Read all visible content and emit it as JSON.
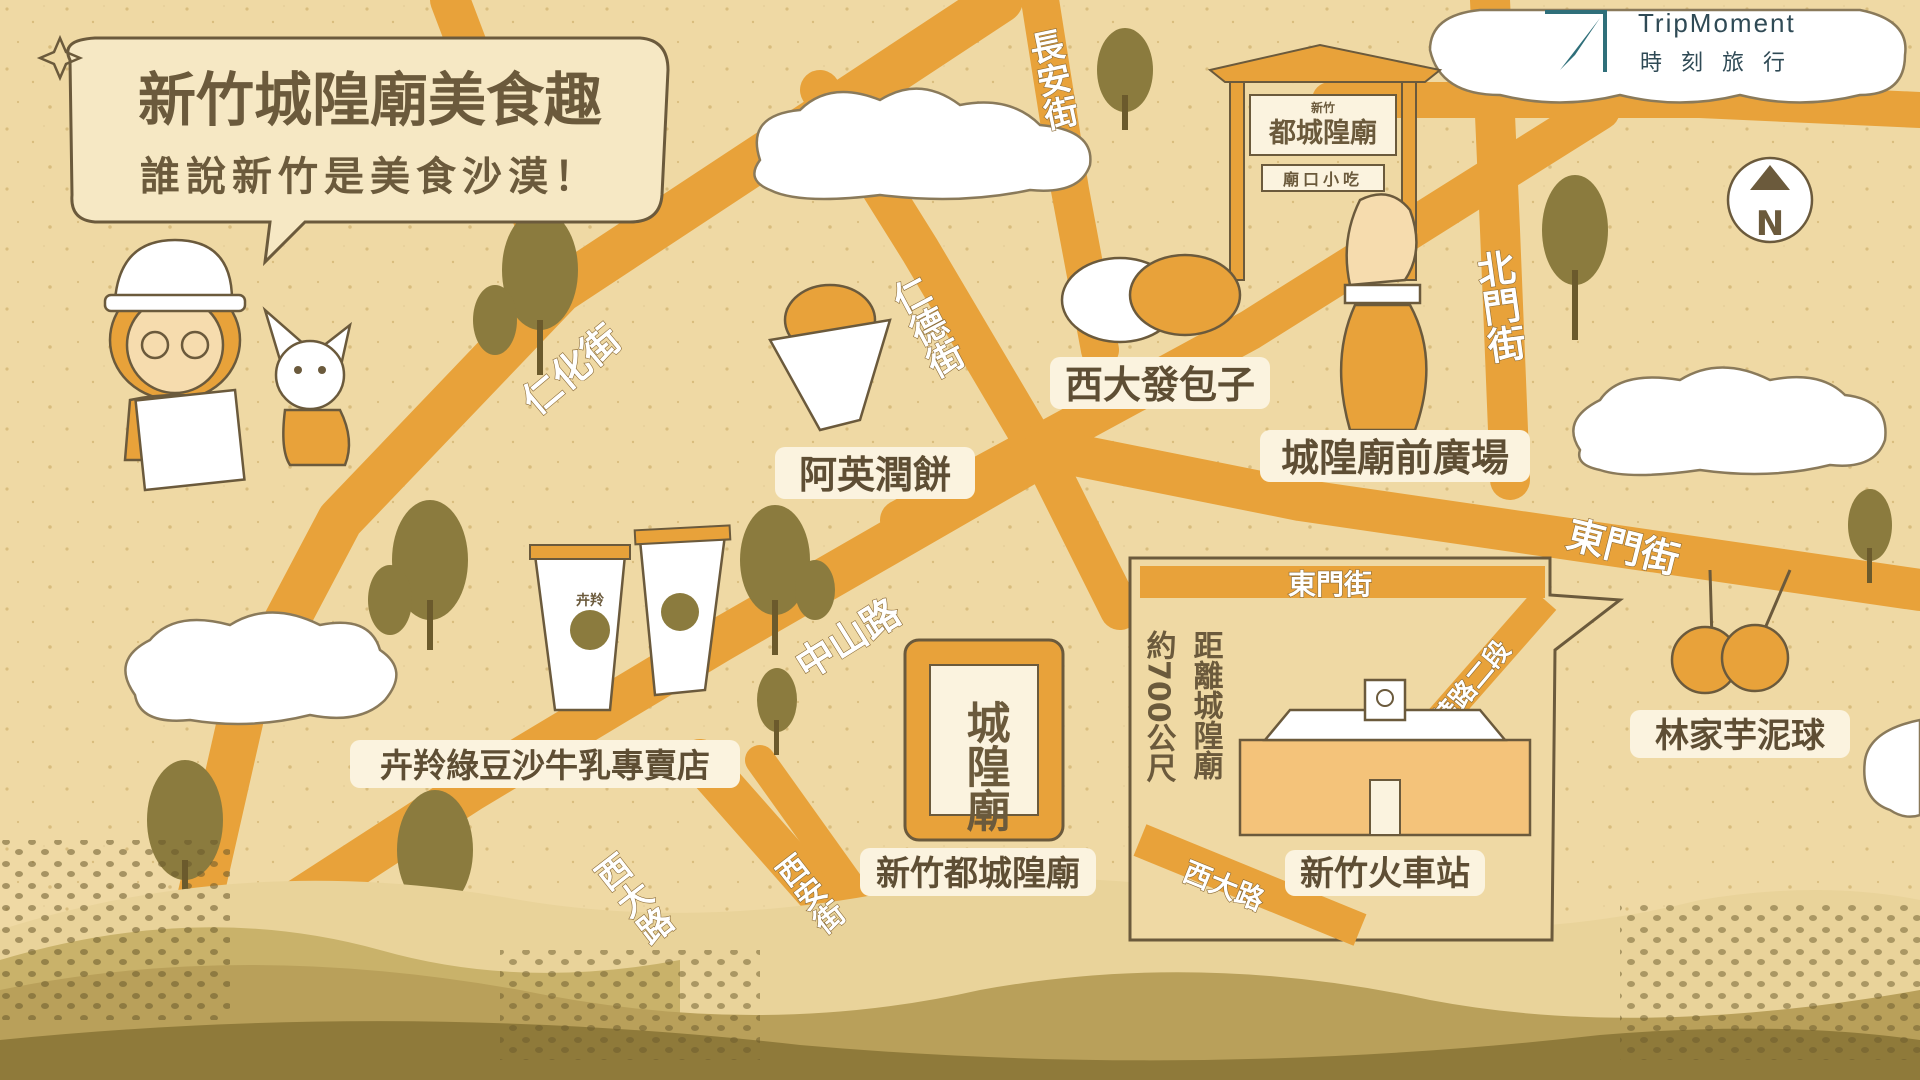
{
  "title": {
    "main": "新竹城隍廟美食趣",
    "sub": "誰說新竹是美食沙漠！"
  },
  "brand": {
    "name_en": "TripMoment",
    "name_zh": "時 刻 旅 行",
    "icon": "compass-icon"
  },
  "compass": {
    "label": "N",
    "icon": "north-arrow-icon"
  },
  "roads": {
    "renhua": "仁化街",
    "changan": "長安街",
    "runde": "仁德街",
    "beimen": "北門街",
    "dongmen": "東門街",
    "zhongshan": "中山路",
    "xida": "西大路",
    "xian": "西安街"
  },
  "places": {
    "baozi": "西大發包子",
    "runbing": "阿英潤餅",
    "plaza": "城隍廟前廣場",
    "milk": "卉羚綠豆沙牛乳專賣店",
    "temple": "新竹都城隍廟",
    "taro": "林家芋泥球",
    "station": "新竹火車站"
  },
  "temple_gate": {
    "small": "新竹",
    "big": "都城隍廟",
    "sign": "廟口小吃"
  },
  "temple_plaque": "城隍廟",
  "cup_brand": "卉羚",
  "inset": {
    "road_dongmen": "東門街",
    "road_zhonghua": "中華路二段",
    "road_xida": "西大路",
    "distance_col1": "約700公尺",
    "distance_col2": "距離城隍廟"
  },
  "colors": {
    "background": "#efd9a4",
    "road": "#e8a23a",
    "text": "#5e4e34",
    "tree": "#8b7b3e",
    "cloud": "#ffffff",
    "hill": "#b9a05a"
  }
}
